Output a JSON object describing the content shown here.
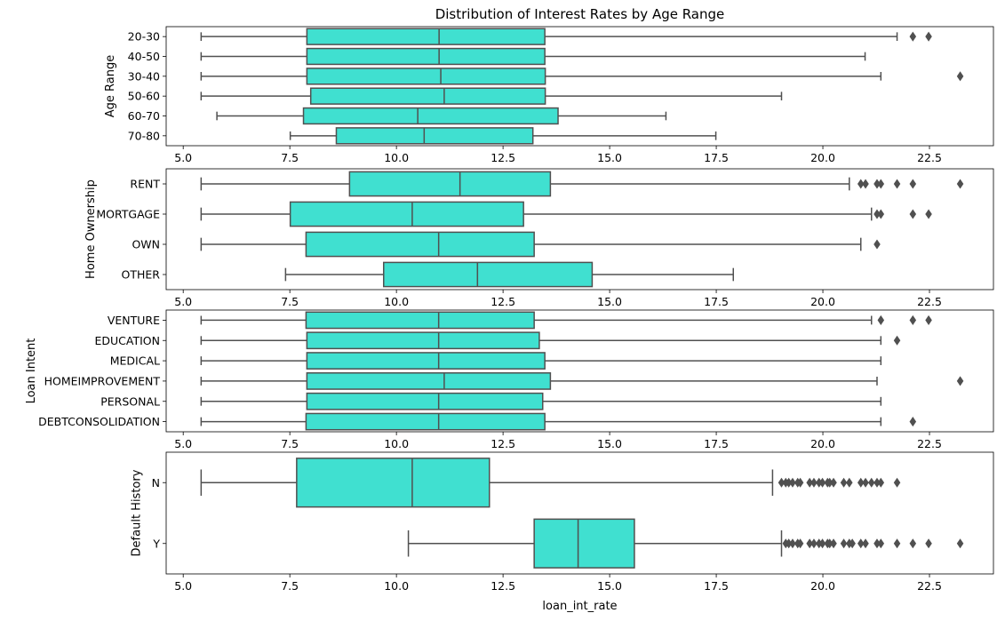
{
  "chart_data": [
    {
      "type": "boxplot",
      "title": "Distribution of Interest Rates by Age Range",
      "xlabel": "",
      "ylabel": "Age Range",
      "xlim": [
        4.6,
        24.0
      ],
      "xticks": [
        "5.0",
        "7.5",
        "10.0",
        "12.5",
        "15.0",
        "17.5",
        "20.0",
        "22.5"
      ],
      "color": "#40E0D0",
      "categories": [
        "20-30",
        "40-50",
        "30-40",
        "50-60",
        "60-70",
        "70-80"
      ],
      "boxes": [
        {
          "label": "20-30",
          "whisker_low": 5.42,
          "q1": 7.9,
          "median": 11.0,
          "q3": 13.48,
          "whisker_high": 21.74,
          "outliers": [
            22.11,
            22.48
          ]
        },
        {
          "label": "40-50",
          "whisker_low": 5.42,
          "q1": 7.9,
          "median": 11.0,
          "q3": 13.48,
          "whisker_high": 20.99,
          "outliers": []
        },
        {
          "label": "30-40",
          "whisker_low": 5.42,
          "q1": 7.9,
          "median": 11.04,
          "q3": 13.49,
          "whisker_high": 21.36,
          "outliers": [
            23.22
          ]
        },
        {
          "label": "50-60",
          "whisker_low": 5.42,
          "q1": 7.99,
          "median": 11.12,
          "q3": 13.49,
          "whisker_high": 19.03,
          "outliers": []
        },
        {
          "label": "60-70",
          "whisker_low": 5.79,
          "q1": 7.82,
          "median": 10.5,
          "q3": 13.79,
          "whisker_high": 16.32,
          "outliers": []
        },
        {
          "label": "70-80",
          "whisker_low": 7.51,
          "q1": 8.59,
          "median": 10.65,
          "q3": 13.2,
          "whisker_high": 17.49,
          "outliers": []
        }
      ]
    },
    {
      "type": "boxplot",
      "title": "",
      "xlabel": "",
      "ylabel": "Home Ownership",
      "xlim": [
        4.6,
        24.0
      ],
      "xticks": [
        "5.0",
        "7.5",
        "10.0",
        "12.5",
        "15.0",
        "17.5",
        "20.0",
        "22.5"
      ],
      "color": "#40E0D0",
      "categories": [
        "RENT",
        "MORTGAGE",
        "OWN",
        "OTHER"
      ],
      "boxes": [
        {
          "label": "RENT",
          "whisker_low": 5.42,
          "q1": 8.9,
          "median": 11.49,
          "q3": 13.61,
          "whisker_high": 20.62,
          "outliers": [
            20.89,
            21.0,
            21.27,
            21.36,
            21.74,
            22.11,
            23.22
          ]
        },
        {
          "label": "MORTGAGE",
          "whisker_low": 5.42,
          "q1": 7.51,
          "median": 10.37,
          "q3": 12.98,
          "whisker_high": 21.14,
          "outliers": [
            21.27,
            21.36,
            22.11,
            22.48
          ]
        },
        {
          "label": "OWN",
          "whisker_low": 5.42,
          "q1": 7.88,
          "median": 10.99,
          "q3": 13.23,
          "whisker_high": 20.89,
          "outliers": [
            21.27
          ]
        },
        {
          "label": "OTHER",
          "whisker_low": 7.4,
          "q1": 9.7,
          "median": 11.9,
          "q3": 14.59,
          "whisker_high": 17.9,
          "outliers": []
        }
      ]
    },
    {
      "type": "boxplot",
      "title": "",
      "xlabel": "",
      "ylabel": "Loan Intent",
      "xlim": [
        4.6,
        24.0
      ],
      "xticks": [
        "5.0",
        "7.5",
        "10.0",
        "12.5",
        "15.0",
        "17.5",
        "20.0",
        "22.5"
      ],
      "color": "#40E0D0",
      "categories": [
        "VENTURE",
        "EDUCATION",
        "MEDICAL",
        "HOMEIMPROVEMENT",
        "PERSONAL",
        "DEBTCONSOLIDATION"
      ],
      "boxes": [
        {
          "label": "VENTURE",
          "whisker_low": 5.42,
          "q1": 7.88,
          "median": 10.99,
          "q3": 13.23,
          "whisker_high": 21.14,
          "outliers": [
            21.36,
            22.11,
            22.48
          ]
        },
        {
          "label": "EDUCATION",
          "whisker_low": 5.42,
          "q1": 7.9,
          "median": 10.99,
          "q3": 13.35,
          "whisker_high": 21.36,
          "outliers": [
            21.74
          ]
        },
        {
          "label": "MEDICAL",
          "whisker_low": 5.42,
          "q1": 7.9,
          "median": 10.99,
          "q3": 13.48,
          "whisker_high": 21.36,
          "outliers": []
        },
        {
          "label": "HOMEIMPROVEMENT",
          "whisker_low": 5.42,
          "q1": 7.9,
          "median": 11.12,
          "q3": 13.61,
          "whisker_high": 21.27,
          "outliers": [
            23.22
          ]
        },
        {
          "label": "PERSONAL",
          "whisker_low": 5.42,
          "q1": 7.9,
          "median": 10.99,
          "q3": 13.43,
          "whisker_high": 21.36,
          "outliers": []
        },
        {
          "label": "DEBTCONSOLIDATION",
          "whisker_low": 5.42,
          "q1": 7.88,
          "median": 10.99,
          "q3": 13.48,
          "whisker_high": 21.36,
          "outliers": [
            22.11
          ]
        }
      ]
    },
    {
      "type": "boxplot",
      "title": "",
      "xlabel": "loan_int_rate",
      "ylabel": "Default History",
      "xlim": [
        4.6,
        24.0
      ],
      "xticks": [
        "5.0",
        "7.5",
        "10.0",
        "12.5",
        "15.0",
        "17.5",
        "20.0",
        "22.5"
      ],
      "color": "#40E0D0",
      "categories": [
        "N",
        "Y"
      ],
      "boxes": [
        {
          "label": "N",
          "whisker_low": 5.42,
          "q1": 7.66,
          "median": 10.37,
          "q3": 12.18,
          "whisker_high": 18.82,
          "outliers": [
            19.03,
            19.13,
            19.2,
            19.29,
            19.41,
            19.47,
            19.69,
            19.79,
            19.91,
            19.99,
            20.11,
            20.16,
            20.25,
            20.49,
            20.62,
            20.89,
            21.0,
            21.14,
            21.27,
            21.36,
            21.74
          ]
        },
        {
          "label": "Y",
          "whisker_low": 10.28,
          "q1": 13.23,
          "median": 14.26,
          "q3": 15.58,
          "whisker_high": 19.03,
          "outliers": [
            19.13,
            19.2,
            19.29,
            19.41,
            19.47,
            19.69,
            19.79,
            19.91,
            19.99,
            20.11,
            20.16,
            20.25,
            20.49,
            20.62,
            20.69,
            20.89,
            21.0,
            21.27,
            21.36,
            21.74,
            22.11,
            22.48,
            23.22
          ]
        }
      ]
    }
  ]
}
